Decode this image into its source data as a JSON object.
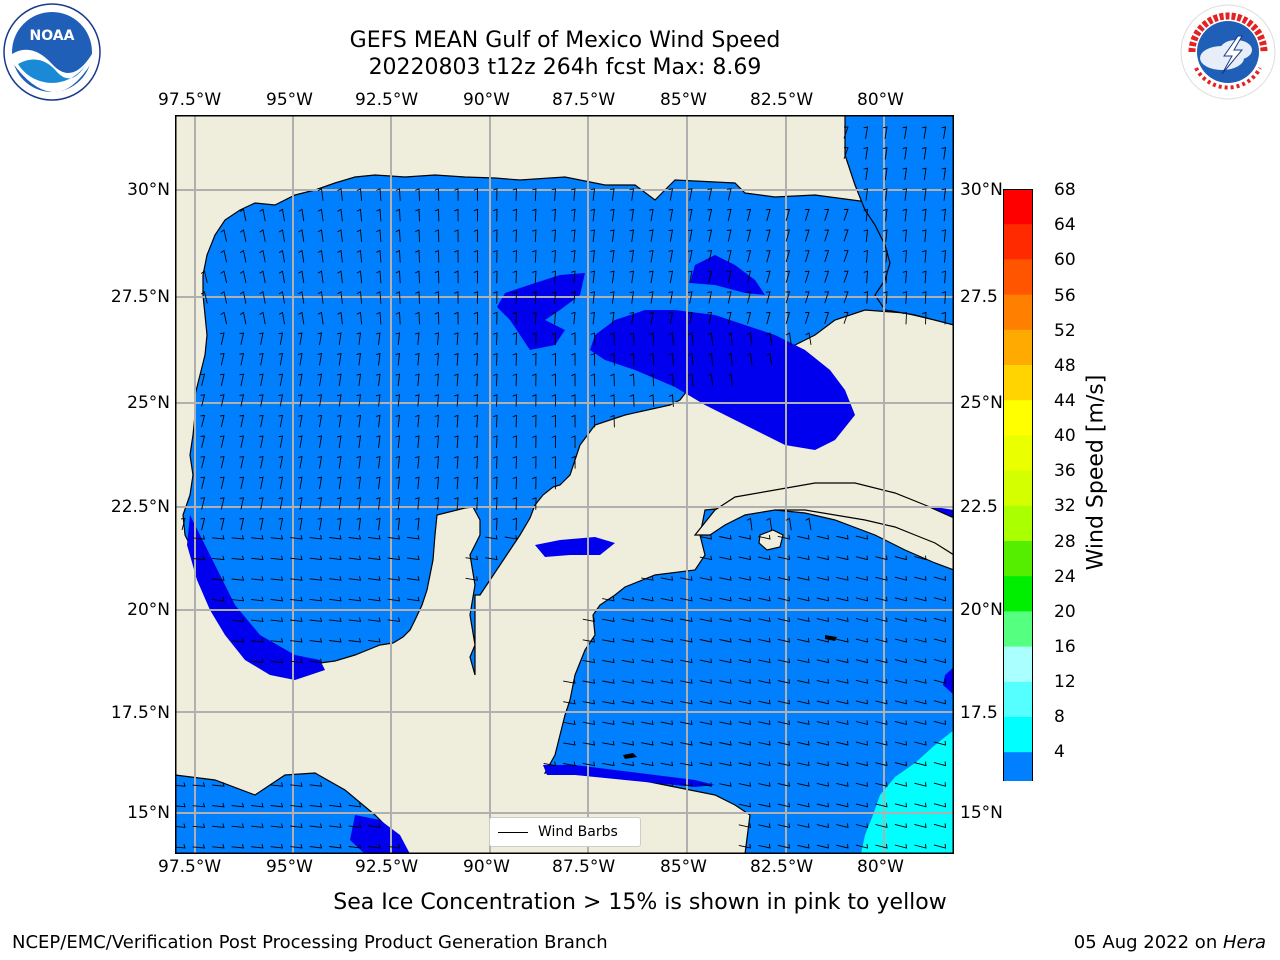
{
  "header": {
    "title_line1": "GEFS MEAN Gulf of Mexico Wind Speed",
    "title_line2": "20220803 t12z 264h fcst   Max: 8.69"
  },
  "logos": {
    "noaa_text": "NOAA",
    "noaa_ring_text": "NATIONAL OCEANIC AND ATMOSPHERIC ADMINISTRATION · U.S. DEPARTMENT OF COMMERCE",
    "nws_ring_text": "NATIONAL WEATHER SERVICE"
  },
  "map": {
    "lon_labels": [
      "97.5°W",
      "95°W",
      "92.5°W",
      "90°W",
      "87.5°W",
      "85°W",
      "82.5°W",
      "80°W"
    ],
    "lat_labels": [
      "30°N",
      "27.5°N",
      "25°N",
      "22.5°N",
      "20°N",
      "17.5°N",
      "15°N"
    ],
    "lat_labels_right": [
      "30°N",
      "27.5",
      "25°N",
      "22.5",
      "20°N",
      "17.5",
      "15°N"
    ],
    "legend_label": "Wind Barbs",
    "colors": {
      "land": "#efeedc",
      "level_4_8": "#0080ff",
      "level_below_4": "#0000ee",
      "level_8_12": "#00ffff",
      "grid": "#b0b0b0"
    }
  },
  "colorbar": {
    "label": "Wind Speed [m/s]",
    "ticks": [
      "68",
      "64",
      "60",
      "56",
      "52",
      "48",
      "44",
      "40",
      "36",
      "32",
      "28",
      "24",
      "20",
      "16",
      "12",
      "8",
      "4"
    ],
    "colors_top_to_bottom": [
      "#ff0000",
      "#ff2a00",
      "#ff5500",
      "#ff8000",
      "#ffaa00",
      "#ffd400",
      "#ffff00",
      "#eaff00",
      "#d4ff00",
      "#aaff00",
      "#55ee00",
      "#00ee00",
      "#55ff80",
      "#aaffff",
      "#55ffff",
      "#00ffff",
      "#0080ff"
    ],
    "under_color": "#0000ee"
  },
  "notes": {
    "sea_ice": "Sea Ice Concentration > 15% is shown in pink to yellow"
  },
  "footer": {
    "left": "NCEP/EMC/Verification Post Processing Product Generation Branch",
    "right_date": "05 Aug 2022 on ",
    "right_host": "Hera"
  }
}
